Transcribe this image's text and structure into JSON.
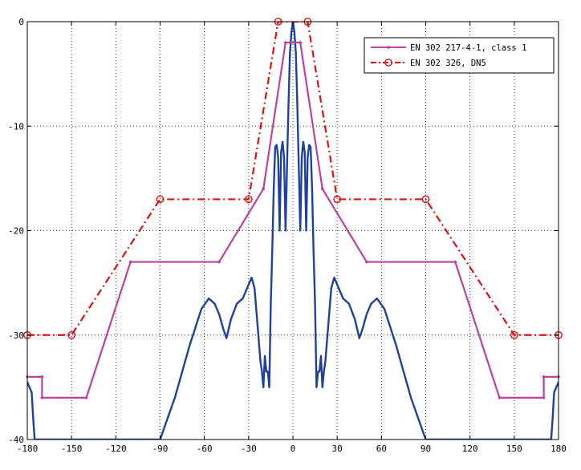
{
  "chart_data": {
    "type": "line",
    "title": "",
    "xlabel": "",
    "ylabel": "",
    "xlim": [
      -180,
      180
    ],
    "ylim": [
      -40,
      0
    ],
    "xticks": [
      -180,
      -150,
      -120,
      -90,
      -60,
      -30,
      0,
      30,
      60,
      90,
      120,
      150,
      180
    ],
    "yticks": [
      0,
      -10,
      -20,
      -30,
      -40
    ],
    "grid": true,
    "legend_position": "top-right",
    "series": [
      {
        "name": "EN 302 217-4-1, class 1",
        "color": "#c0409e",
        "marker": "dot",
        "style": "solid",
        "x": [
          -180,
          -170,
          -170,
          -140,
          -110,
          -50,
          -20,
          -5,
          5,
          20,
          50,
          110,
          140,
          170,
          170,
          180
        ],
        "y": [
          -34,
          -34,
          -36,
          -36,
          -23,
          -23,
          -16,
          -2,
          -2,
          -16,
          -23,
          -23,
          -36,
          -36,
          -34,
          -34
        ]
      },
      {
        "name": "EN 302 326, DN5",
        "color": "#e01010",
        "marker": "circle",
        "style": "dashdot",
        "x": [
          -180,
          -150,
          -90,
          -30,
          -10,
          10,
          30,
          90,
          150,
          180
        ],
        "y": [
          -30,
          -30,
          -17,
          -17,
          0,
          0,
          -17,
          -17,
          -30,
          -30
        ]
      },
      {
        "name": "",
        "color": "#2040a0",
        "marker": "none",
        "style": "solid",
        "x": [
          -180,
          -177,
          -176,
          -175,
          -174,
          -160,
          -140,
          -120,
          -100,
          -90,
          -80,
          -70,
          -62,
          -57,
          -53,
          -50,
          -47,
          -45,
          -42,
          -38,
          -34,
          -31,
          -28,
          -26,
          -24,
          -22,
          -21,
          -20,
          -19,
          -18,
          -17,
          -16,
          -15,
          -14,
          -13,
          -12,
          -11,
          -10,
          -9,
          -8,
          -7,
          -6,
          -5,
          -4,
          -3,
          -2,
          -1,
          0,
          1,
          2,
          3,
          4,
          5,
          6,
          7,
          8,
          9,
          10,
          11,
          12,
          13,
          14,
          15,
          16,
          17,
          18,
          19,
          20,
          21,
          22,
          24,
          26,
          28,
          31,
          34,
          38,
          42,
          45,
          47,
          50,
          53,
          57,
          62,
          70,
          80,
          90,
          100,
          120,
          140,
          160,
          174,
          175,
          176,
          177,
          180
        ],
        "y": [
          -34.5,
          -35.5,
          -38,
          -40,
          -40,
          -40,
          -40,
          -40,
          -40,
          -40,
          -36,
          -31,
          -27.5,
          -26.5,
          -27,
          -28,
          -29.5,
          -30.3,
          -28.5,
          -27,
          -26.5,
          -25.5,
          -24.5,
          -25.5,
          -29,
          -32.5,
          -33.5,
          -35,
          -32,
          -33.5,
          -33.5,
          -35,
          -27,
          -22,
          -16,
          -12,
          -11.8,
          -13,
          -20,
          -12.5,
          -11.5,
          -13,
          -20,
          -14,
          -8,
          -3,
          -1,
          0,
          -1,
          -3,
          -8,
          -14,
          -20,
          -13,
          -11.5,
          -12.5,
          -20,
          -13,
          -11.8,
          -12,
          -16,
          -22,
          -27,
          -35,
          -33.5,
          -33.5,
          -32,
          -35,
          -33.5,
          -32.5,
          -29,
          -25.5,
          -24.5,
          -25.5,
          -26.5,
          -27,
          -28.5,
          -30.3,
          -29.5,
          -28,
          -27,
          -26.5,
          -27.5,
          -31,
          -36,
          -40,
          -40,
          -40,
          -40,
          -40,
          -40,
          -40,
          -38,
          -35.5,
          -34.5
        ]
      }
    ]
  }
}
